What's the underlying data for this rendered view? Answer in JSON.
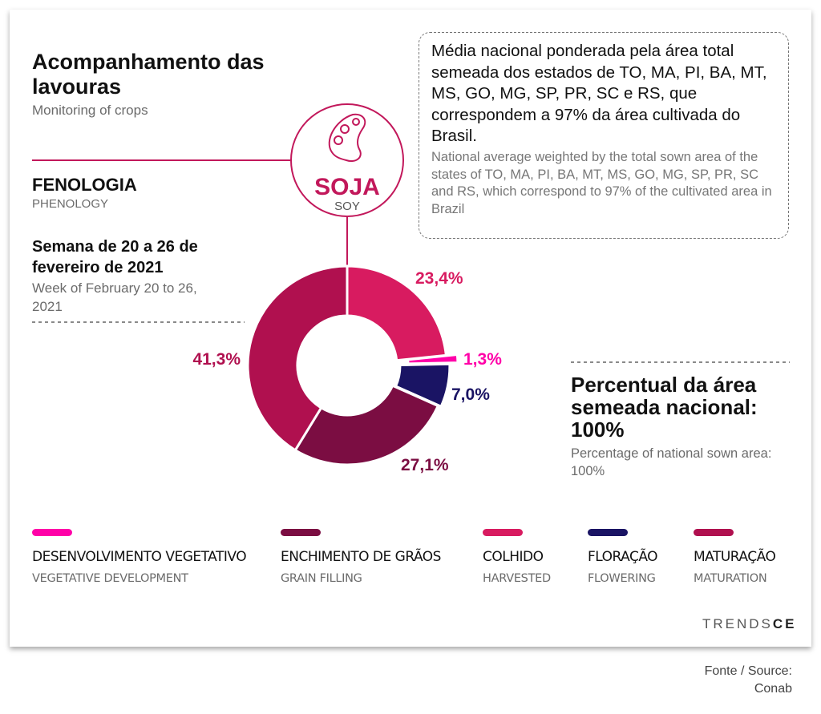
{
  "header": {
    "title_pt": "Acompanhamento das lavouras",
    "title_en": "Monitoring of crops"
  },
  "section": {
    "title_pt": "FENOLOGIA",
    "title_en": "PHENOLOGY"
  },
  "week": {
    "pt": "Semana de 20 a 26 de fevereiro de 2021",
    "en": "Week of February 20 to 26, 2021"
  },
  "crop": {
    "name_pt": "SOJA",
    "name_en": "SOY",
    "icon": "soybean-pod-icon",
    "color": "#c2185b"
  },
  "note": {
    "pt": "Média nacional ponderada pela área total semeada dos estados de TO, MA, PI, BA, MT, MS, GO, MG, SP, PR, SC e RS, que correspondem a 97% da área cultivada do Brasil.",
    "en": "National average weighted by the total sown area of the states of TO, MA, PI, BA, MT, MS, GO, MG, SP, PR, SC and RS, which correspond to 97% of the cultivated area in Brazil"
  },
  "summary": {
    "pt": "Percentual da área semeada nacional: 100%",
    "en": "Percentage of national sown area: 100%"
  },
  "chart_data": {
    "type": "pie",
    "style": "donut",
    "slices": [
      {
        "key": "colhido",
        "label": "23,4%",
        "value": 23.4,
        "color": "#d81b60"
      },
      {
        "key": "desenvolvimento",
        "label": "1,3%",
        "value": 1.3,
        "color": "#ff00a8"
      },
      {
        "key": "floracao",
        "label": "7,0%",
        "value": 7.0,
        "color": "#1a1464"
      },
      {
        "key": "enchimento",
        "label": "27,1%",
        "value": 27.1,
        "color": "#7b0d42"
      },
      {
        "key": "maturacao",
        "label": "41,3%",
        "value": 41.3,
        "color": "#b0104f"
      }
    ]
  },
  "legend": [
    {
      "pt": "DESENVOLVIMENTO VEGETATIVO",
      "en": "VEGETATIVE DEVELOPMENT",
      "color": "#ff00a8"
    },
    {
      "pt": "ENCHIMENTO DE GRÃOS",
      "en": "GRAIN FILLING",
      "color": "#7b0d42"
    },
    {
      "pt": "COLHIDO",
      "en": "HARVESTED",
      "color": "#d81b60"
    },
    {
      "pt": "FLORAÇÃO",
      "en": "FLOWERING",
      "color": "#1a1464"
    },
    {
      "pt": "MATURAÇÃO",
      "en": "MATURATION",
      "color": "#b0104f"
    }
  ],
  "brand": {
    "part1": "TRENDS",
    "part2": "CE"
  },
  "source": {
    "line1": "Fonte / Source:",
    "line2": "Conab"
  }
}
